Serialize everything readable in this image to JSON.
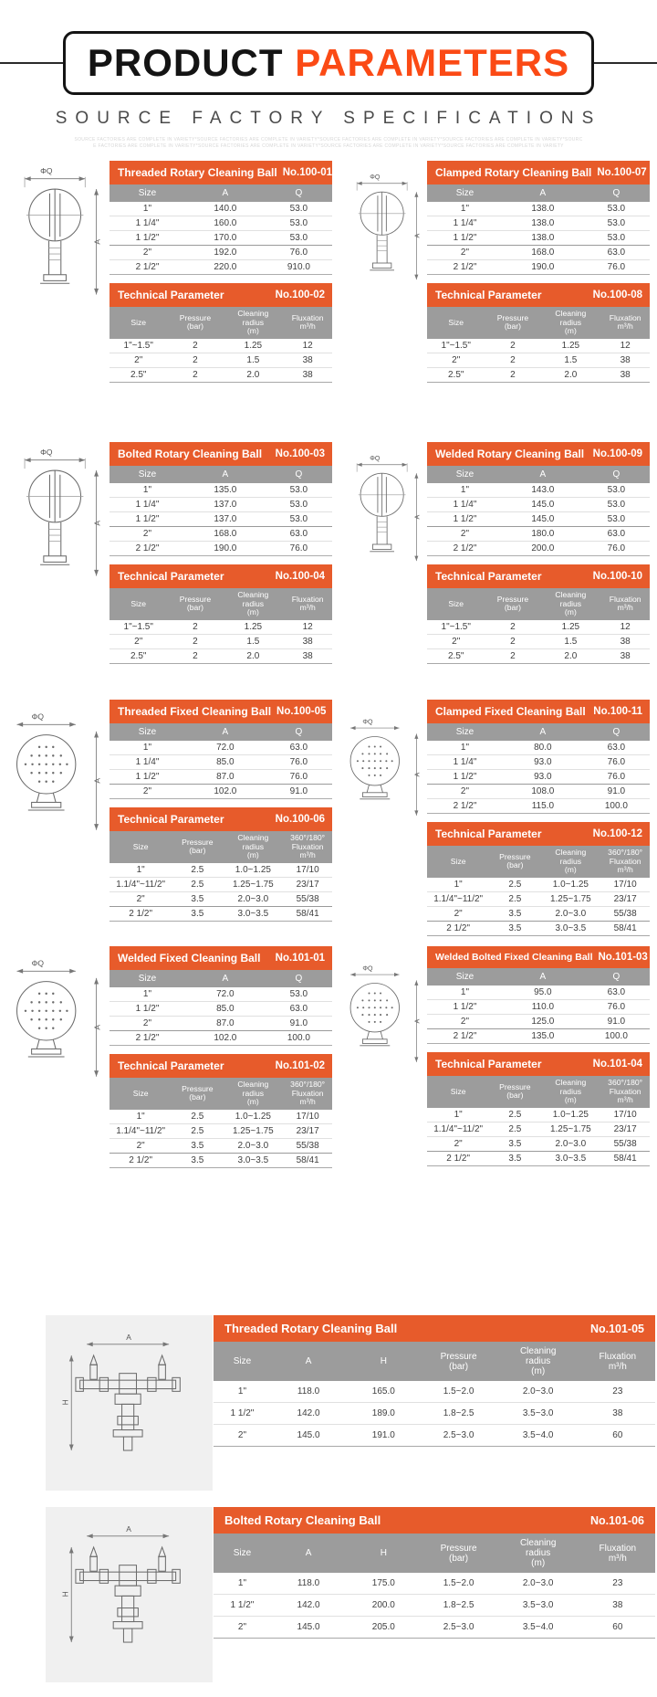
{
  "header": {
    "title_black": "PRODUCT",
    "title_orange": "PARAMETERS",
    "subtitle": "SOURCE FACTORY SPECIFICATIONS",
    "fineprint_line1": "SOURCE FACTORIES ARE COMPLETE IN VARIETY*SOURCE FACTORIES ARE COMPLETE IN VARIETY*SOURCE FACTORIES ARE COMPLETE IN VARIETY*SOURCE FACTORIES ARE COMPLETE IN VARIETY*SOURC",
    "fineprint_line2": "E FACTORIES ARE COMPLETE IN VARIETY*SOURCE FACTORIES ARE COMPLETE IN VARIETY*SOURCE FACTORIES ARE COMPLETE IN VARIETY*SOURCE FACTORIES ARE COMPLETE IN VARIETY"
  },
  "colors": {
    "accent_orange": "#e75b2b",
    "title_orange": "#fb4a15",
    "header_gray": "#9c9c9c",
    "panel_gray": "#f0f0f0"
  },
  "labels": {
    "phi_q": "ΦQ",
    "a": "A",
    "h": "H"
  },
  "shared": {
    "size_cols": [
      "Size",
      "A",
      "Q"
    ],
    "tech_cols_rotary": [
      "Size",
      "Pressure\n(bar)",
      "Cleaning\nradius\n(m)",
      "Fluxation\nm³/h"
    ],
    "tech_cols_fixed": [
      "Size",
      "Pressure\n(bar)",
      "Cleaning\nradius\n(m)",
      "360°/180°\nFluxation\nm³/h"
    ],
    "tech_rows_rotary": [
      [
        "1\"~1.5\"",
        "2",
        "1.25",
        "12"
      ],
      [
        "2\"",
        "2",
        "1.5",
        "38"
      ],
      [
        "2.5\"",
        "2",
        "2.0",
        "38"
      ]
    ],
    "tech_rows_fixed": [
      [
        "1\"",
        "2.5",
        "1.0~1.25",
        "17/10"
      ],
      [
        "1.1/4\"~11/2\"",
        "2.5",
        "1.25~1.75",
        "23/17"
      ],
      [
        "2\"",
        "3.5",
        "2.0~3.0",
        "55/38"
      ],
      [
        "2 1/2\"",
        "3.5",
        "3.0~3.5",
        "58/41"
      ]
    ]
  },
  "sections": [
    {
      "dim": {
        "title": "Threaded Rotary Cleaning Ball",
        "no": "No.100-01",
        "rows": [
          [
            "1\"",
            "140.0",
            "53.0"
          ],
          [
            "1 1/4\"",
            "160.0",
            "53.0"
          ],
          [
            "1 1/2\"",
            "170.0",
            "53.0"
          ],
          [
            "2\"",
            "192.0",
            "76.0"
          ],
          [
            "2 1/2\"",
            "220.0",
            "910.0"
          ]
        ]
      },
      "tech": {
        "title": "Technical Parameter",
        "no": "No.100-02"
      }
    },
    {
      "dim": {
        "title": "Clamped Rotary Cleaning Ball",
        "no": "No.100-07",
        "rows": [
          [
            "1\"",
            "138.0",
            "53.0"
          ],
          [
            "1 1/4\"",
            "138.0",
            "53.0"
          ],
          [
            "1 1/2\"",
            "138.0",
            "53.0"
          ],
          [
            "2\"",
            "168.0",
            "63.0"
          ],
          [
            "2 1/2\"",
            "190.0",
            "76.0"
          ]
        ]
      },
      "tech": {
        "title": "Technical Parameter",
        "no": "No.100-08"
      }
    },
    {
      "dim": {
        "title": "Bolted Rotary Cleaning Ball",
        "no": "No.100-03",
        "rows": [
          [
            "1\"",
            "135.0",
            "53.0"
          ],
          [
            "1 1/4\"",
            "137.0",
            "53.0"
          ],
          [
            "1 1/2\"",
            "137.0",
            "53.0"
          ],
          [
            "2\"",
            "168.0",
            "63.0"
          ],
          [
            "2 1/2\"",
            "190.0",
            "76.0"
          ]
        ]
      },
      "tech": {
        "title": "Technical Parameter",
        "no": "No.100-04"
      }
    },
    {
      "dim": {
        "title": "Welded Rotary Cleaning Ball",
        "no": "No.100-09",
        "rows": [
          [
            "1\"",
            "143.0",
            "53.0"
          ],
          [
            "1 1/4\"",
            "145.0",
            "53.0"
          ],
          [
            "1 1/2\"",
            "145.0",
            "53.0"
          ],
          [
            "2\"",
            "180.0",
            "63.0"
          ],
          [
            "2 1/2\"",
            "200.0",
            "76.0"
          ]
        ]
      },
      "tech": {
        "title": "Technical Parameter",
        "no": "No.100-10"
      }
    },
    {
      "dim": {
        "title": "Threaded Fixed Cleaning Ball",
        "no": "No.100-05",
        "rows": [
          [
            "1\"",
            "72.0",
            "63.0"
          ],
          [
            "1 1/4\"",
            "85.0",
            "76.0"
          ],
          [
            "1 1/2\"",
            "87.0",
            "76.0"
          ],
          [
            "2\"",
            "102.0",
            "91.0"
          ]
        ]
      },
      "tech": {
        "title": "Technical Parameter",
        "no": "No.100-06"
      }
    },
    {
      "dim": {
        "title": "Clamped Fixed Cleaning Ball",
        "no": "No.100-11",
        "rows": [
          [
            "1\"",
            "80.0",
            "63.0"
          ],
          [
            "1 1/4\"",
            "93.0",
            "76.0"
          ],
          [
            "1 1/2\"",
            "93.0",
            "76.0"
          ],
          [
            "2\"",
            "108.0",
            "91.0"
          ],
          [
            "2 1/2\"",
            "115.0",
            "100.0"
          ]
        ]
      },
      "tech": {
        "title": "Technical Parameter",
        "no": "No.100-12"
      }
    },
    {
      "dim": {
        "title": "Welded Fixed Cleaning Ball",
        "no": "No.101-01",
        "rows": [
          [
            "1\"",
            "72.0",
            "53.0"
          ],
          [
            "1 1/2\"",
            "85.0",
            "63.0"
          ],
          [
            "2\"",
            "87.0",
            "91.0"
          ],
          [
            "2 1/2\"",
            "102.0",
            "100.0"
          ]
        ]
      },
      "tech": {
        "title": "Technical Parameter",
        "no": "No.101-02"
      }
    },
    {
      "dim": {
        "title": "Welded Bolted Fixed Cleaning Ball",
        "no": "No.101-03",
        "rows": [
          [
            "1\"",
            "95.0",
            "63.0"
          ],
          [
            "1 1/2\"",
            "110.0",
            "76.0"
          ],
          [
            "2\"",
            "125.0",
            "91.0"
          ],
          [
            "2 1/2\"",
            "135.0",
            "100.0"
          ]
        ]
      },
      "tech": {
        "title": "Technical Parameter",
        "no": "No.101-04"
      }
    }
  ],
  "wide_tables": [
    {
      "title": "Threaded Rotary Cleaning Ball",
      "no": "No.101-05",
      "cols": [
        "Size",
        "A",
        "H",
        "Pressure\n(bar)",
        "Cleaning\nradius\n(m)",
        "Fluxation\nm³/h"
      ],
      "rows": [
        [
          "1\"",
          "118.0",
          "165.0",
          "1.5~2.0",
          "2.0~3.0",
          "23"
        ],
        [
          "1 1/2\"",
          "142.0",
          "189.0",
          "1.8~2.5",
          "3.5~3.0",
          "38"
        ],
        [
          "2\"",
          "145.0",
          "191.0",
          "2.5~3.0",
          "3.5~4.0",
          "60"
        ]
      ]
    },
    {
      "title": "Bolted Rotary Cleaning Ball",
      "no": "No.101-06",
      "cols": [
        "Size",
        "A",
        "H",
        "Pressure\n(bar)",
        "Cleaning\nradius\n(m)",
        "Fluxation\nm³/h"
      ],
      "rows": [
        [
          "1\"",
          "118.0",
          "175.0",
          "1.5~2.0",
          "2.0~3.0",
          "23"
        ],
        [
          "1 1/2\"",
          "142.0",
          "200.0",
          "1.8~2.5",
          "3.5~3.0",
          "38"
        ],
        [
          "2\"",
          "145.0",
          "205.0",
          "2.5~3.0",
          "3.5~4.0",
          "60"
        ]
      ]
    }
  ]
}
